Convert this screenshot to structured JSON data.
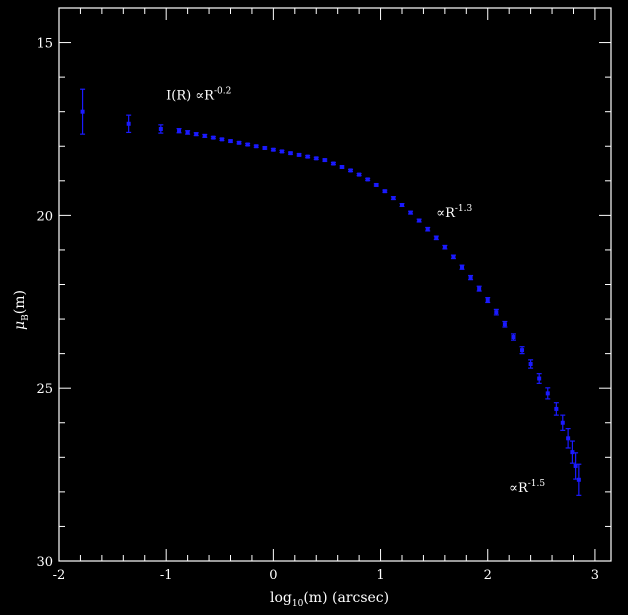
{
  "chart_data": {
    "type": "scatter",
    "xlabel": "log",
    "xlabel_sub": "10",
    "xlabel_rest": "(m) (arcsec)",
    "ylabel_main": "μ",
    "ylabel_sub": "B",
    "ylabel_rest": "(m)",
    "xlim": [
      -2,
      3.15
    ],
    "ylim": [
      30,
      14
    ],
    "y_inverted": true,
    "x_ticks": [
      "-2",
      "-1",
      "0",
      "1",
      "2",
      "3"
    ],
    "y_ticks": [
      "15",
      "20",
      "25",
      "30"
    ],
    "annotations": [
      {
        "text": "I(R) ∝R",
        "sup": "-0.2",
        "x": -1.0,
        "y": 16.65
      },
      {
        "text": "∝R",
        "sup": "-1.3",
        "x": 1.52,
        "y": 20.05
      },
      {
        "text": "∝R",
        "sup": "-1.5",
        "x": 2.2,
        "y": 28.0
      }
    ],
    "colors": {
      "points": "#1a1aff",
      "axes": "#ffffff",
      "background": "#000000"
    },
    "series": [
      {
        "points": [
          {
            "x": -1.78,
            "y": 17.0,
            "err": 0.65
          },
          {
            "x": -1.35,
            "y": 17.35,
            "err": 0.25
          },
          {
            "x": -1.05,
            "y": 17.5,
            "err": 0.12
          },
          {
            "x": -0.88,
            "y": 17.55,
            "err": 0.06
          },
          {
            "x": -0.8,
            "y": 17.6,
            "err": 0.05
          },
          {
            "x": -0.72,
            "y": 17.65,
            "err": 0.04
          },
          {
            "x": -0.64,
            "y": 17.7,
            "err": 0.04
          },
          {
            "x": -0.56,
            "y": 17.75,
            "err": 0.03
          },
          {
            "x": -0.48,
            "y": 17.8,
            "err": 0.03
          },
          {
            "x": -0.4,
            "y": 17.85,
            "err": 0.03
          },
          {
            "x": -0.32,
            "y": 17.9,
            "err": 0.03
          },
          {
            "x": -0.24,
            "y": 17.95,
            "err": 0.03
          },
          {
            "x": -0.16,
            "y": 18.0,
            "err": 0.03
          },
          {
            "x": -0.08,
            "y": 18.05,
            "err": 0.03
          },
          {
            "x": 0.0,
            "y": 18.1,
            "err": 0.03
          },
          {
            "x": 0.08,
            "y": 18.15,
            "err": 0.03
          },
          {
            "x": 0.16,
            "y": 18.2,
            "err": 0.03
          },
          {
            "x": 0.24,
            "y": 18.25,
            "err": 0.03
          },
          {
            "x": 0.32,
            "y": 18.3,
            "err": 0.03
          },
          {
            "x": 0.4,
            "y": 18.35,
            "err": 0.03
          },
          {
            "x": 0.48,
            "y": 18.4,
            "err": 0.03
          },
          {
            "x": 0.56,
            "y": 18.5,
            "err": 0.03
          },
          {
            "x": 0.64,
            "y": 18.6,
            "err": 0.03
          },
          {
            "x": 0.72,
            "y": 18.7,
            "err": 0.03
          },
          {
            "x": 0.8,
            "y": 18.82,
            "err": 0.03
          },
          {
            "x": 0.88,
            "y": 18.96,
            "err": 0.03
          },
          {
            "x": 0.96,
            "y": 19.12,
            "err": 0.03
          },
          {
            "x": 1.04,
            "y": 19.3,
            "err": 0.03
          },
          {
            "x": 1.12,
            "y": 19.5,
            "err": 0.04
          },
          {
            "x": 1.2,
            "y": 19.7,
            "err": 0.04
          },
          {
            "x": 1.28,
            "y": 19.92,
            "err": 0.04
          },
          {
            "x": 1.36,
            "y": 20.15,
            "err": 0.04
          },
          {
            "x": 1.44,
            "y": 20.4,
            "err": 0.05
          },
          {
            "x": 1.52,
            "y": 20.65,
            "err": 0.05
          },
          {
            "x": 1.6,
            "y": 20.92,
            "err": 0.05
          },
          {
            "x": 1.68,
            "y": 21.2,
            "err": 0.05
          },
          {
            "x": 1.76,
            "y": 21.5,
            "err": 0.06
          },
          {
            "x": 1.84,
            "y": 21.8,
            "err": 0.06
          },
          {
            "x": 1.92,
            "y": 22.12,
            "err": 0.07
          },
          {
            "x": 2.0,
            "y": 22.45,
            "err": 0.07
          },
          {
            "x": 2.08,
            "y": 22.8,
            "err": 0.08
          },
          {
            "x": 2.16,
            "y": 23.15,
            "err": 0.08
          },
          {
            "x": 2.24,
            "y": 23.52,
            "err": 0.09
          },
          {
            "x": 2.32,
            "y": 23.9,
            "err": 0.1
          },
          {
            "x": 2.4,
            "y": 24.3,
            "err": 0.12
          },
          {
            "x": 2.48,
            "y": 24.72,
            "err": 0.14
          },
          {
            "x": 2.56,
            "y": 25.15,
            "err": 0.16
          },
          {
            "x": 2.64,
            "y": 25.6,
            "err": 0.18
          },
          {
            "x": 2.7,
            "y": 26.0,
            "err": 0.22
          },
          {
            "x": 2.75,
            "y": 26.45,
            "err": 0.28
          },
          {
            "x": 2.79,
            "y": 26.85,
            "err": 0.32
          },
          {
            "x": 2.82,
            "y": 27.25,
            "err": 0.38
          },
          {
            "x": 2.85,
            "y": 27.65,
            "err": 0.45
          }
        ]
      }
    ]
  }
}
